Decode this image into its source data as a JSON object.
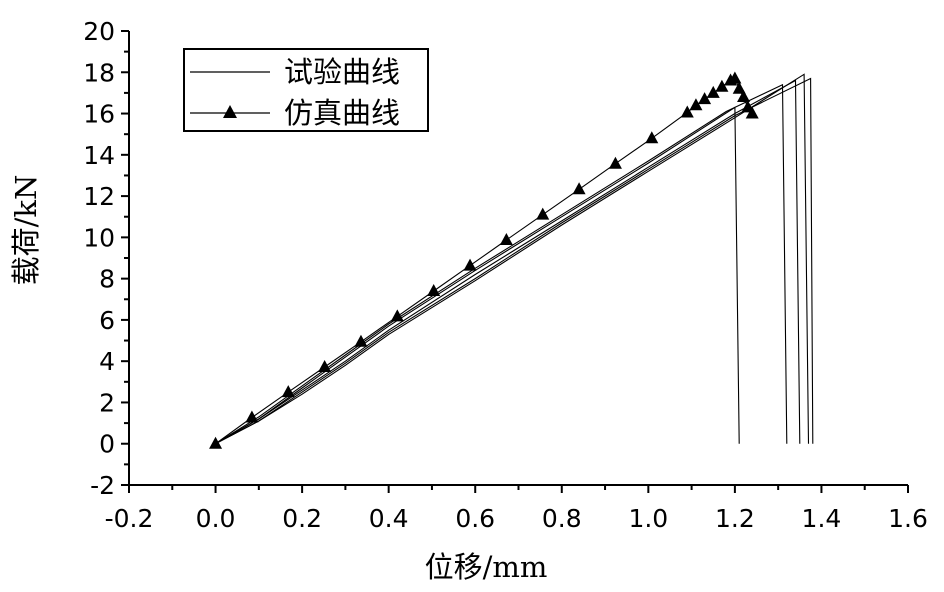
{
  "chart_data": {
    "type": "line",
    "xlabel": "位移/mm",
    "ylabel": "载荷/kN",
    "xlim": [
      -0.2,
      1.6
    ],
    "ylim": [
      -2,
      20
    ],
    "xticks": [
      -0.2,
      0.0,
      0.2,
      0.4,
      0.6,
      0.8,
      1.0,
      1.2,
      1.4,
      1.6
    ],
    "xtick_labels": [
      "-0.2",
      "0.0",
      "0.2",
      "0.4",
      "0.6",
      "0.8",
      "1.0",
      "1.2",
      "1.4",
      "1.6"
    ],
    "yticks": [
      -2,
      0,
      2,
      4,
      6,
      8,
      10,
      12,
      14,
      16,
      18,
      20
    ],
    "ytick_labels": [
      "-2",
      "0",
      "2",
      "4",
      "6",
      "8",
      "10",
      "12",
      "14",
      "16",
      "18",
      "20"
    ],
    "grid": false,
    "legend_position": "top-left",
    "legend": [
      {
        "label": "试验曲线",
        "marker": "none"
      },
      {
        "label": "仿真曲线",
        "marker": "triangle"
      }
    ],
    "series": [
      {
        "name": "试验曲线",
        "color": "#000000",
        "curves": [
          [
            [
              0,
              0
            ],
            [
              0.1,
              1.1
            ],
            [
              0.2,
              2.4
            ],
            [
              0.3,
              3.8
            ],
            [
              0.4,
              5.3
            ],
            [
              0.6,
              7.9
            ],
            [
              0.8,
              10.6
            ],
            [
              1.0,
              13.2
            ],
            [
              1.2,
              15.8
            ],
            [
              1.36,
              17.9
            ],
            [
              1.37,
              0
            ]
          ],
          [
            [
              0,
              0
            ],
            [
              0.1,
              1.2
            ],
            [
              0.2,
              2.6
            ],
            [
              0.3,
              4.0
            ],
            [
              0.4,
              5.5
            ],
            [
              0.6,
              8.2
            ],
            [
              0.8,
              10.8
            ],
            [
              1.0,
              13.4
            ],
            [
              1.2,
              16.0
            ],
            [
              1.34,
              17.6
            ],
            [
              1.35,
              0
            ]
          ],
          [
            [
              0,
              0
            ],
            [
              0.1,
              1.2
            ],
            [
              0.2,
              2.7
            ],
            [
              0.3,
              4.2
            ],
            [
              0.4,
              5.7
            ],
            [
              0.6,
              8.4
            ],
            [
              0.8,
              11.0
            ],
            [
              1.0,
              13.6
            ],
            [
              1.2,
              16.3
            ],
            [
              1.31,
              17.4
            ],
            [
              1.32,
              0
            ]
          ],
          [
            [
              0,
              0
            ],
            [
              0.1,
              1.3
            ],
            [
              0.2,
              2.8
            ],
            [
              0.3,
              4.3
            ],
            [
              0.4,
              5.8
            ],
            [
              0.6,
              8.5
            ],
            [
              0.8,
              11.1
            ],
            [
              1.0,
              13.7
            ],
            [
              1.18,
              16.1
            ],
            [
              1.2,
              16.3
            ],
            [
              1.21,
              0
            ]
          ],
          [
            [
              0,
              0
            ],
            [
              0.1,
              1.1
            ],
            [
              0.2,
              2.5
            ],
            [
              0.3,
              3.9
            ],
            [
              0.4,
              5.4
            ],
            [
              0.6,
              8.0
            ],
            [
              0.8,
              10.7
            ],
            [
              1.0,
              13.3
            ],
            [
              1.2,
              15.9
            ],
            [
              1.375,
              17.7
            ],
            [
              1.38,
              0
            ]
          ]
        ]
      },
      {
        "name": "仿真曲线",
        "color": "#000000",
        "marker": "triangle",
        "x": [
          0.0,
          0.084,
          0.168,
          0.252,
          0.336,
          0.42,
          0.504,
          0.588,
          0.672,
          0.756,
          0.84,
          0.924,
          1.008,
          1.09,
          1.11,
          1.13,
          1.15,
          1.17,
          1.19,
          1.2,
          1.21,
          1.22,
          1.23,
          1.24
        ],
        "y": [
          0.0,
          1.27,
          2.5,
          3.72,
          4.94,
          6.17,
          7.4,
          8.63,
          9.87,
          11.1,
          12.33,
          13.57,
          14.8,
          16.05,
          16.4,
          16.7,
          17.0,
          17.3,
          17.6,
          17.7,
          17.2,
          16.8,
          16.3,
          16.0
        ]
      }
    ]
  }
}
